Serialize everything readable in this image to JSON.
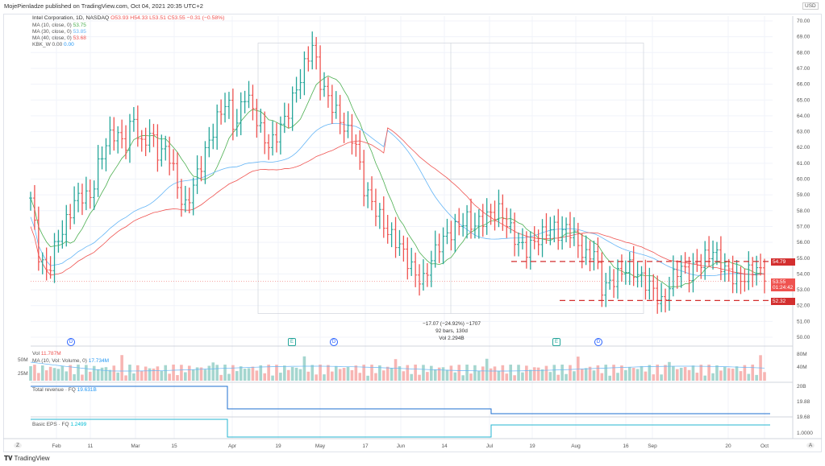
{
  "published": "MojePienladze published on TradingView.com, Oct 04, 2021 20:35 UTC+2",
  "symbol": {
    "title": "Intel Corporation, 1D, NASDAQ",
    "o": "O53.93",
    "h": "H54.33",
    "l": "L53.51",
    "c": "C53.55",
    "chg": "−0.31 (−0.58%)"
  },
  "indicators": [
    {
      "label": "MA (10, close, 0)",
      "value": "53.75",
      "color": "#4caf50"
    },
    {
      "label": "MA (30, close, 0)",
      "value": "53.85",
      "color": "#64b5f6"
    },
    {
      "label": "MA (40, close, 0)",
      "value": "53.68",
      "color": "#ef5350"
    },
    {
      "label": "KBK_W 0.00",
      "value": "0.00",
      "color": "#2196f3"
    }
  ],
  "volume": {
    "label": "Vol",
    "value": "11.787M",
    "ma_label": "MA (10, Vol: Volume, 0)",
    "ma_value": "17.734M",
    "ticks": [
      "50M",
      "25M"
    ],
    "axis": [
      "80M",
      "40M"
    ]
  },
  "revenue": {
    "label": "Total revenue · FQ",
    "value": "19.631B",
    "axis": [
      "20B",
      "19.88",
      "19.68"
    ],
    "values_b": [
      20.0,
      19.63,
      19.63
    ],
    "change_dates": [
      "Mar 31",
      "Jul 1"
    ]
  },
  "eps": {
    "label": "Basic EPS · FQ",
    "value": "1.2499",
    "axis": [
      "1.0000"
    ]
  },
  "measure": {
    "line1": "−17.07 (−24.92%) −1707",
    "line2": "92 bars, 130d",
    "line3": "Vol 2.294B"
  },
  "levels": {
    "resistance": "54.79",
    "support": "52.32",
    "last": "53.55",
    "countdown": "01:24:42",
    "currency": "USD"
  },
  "events": [
    {
      "t": "D",
      "x": "Feb 5"
    },
    {
      "t": "E",
      "x": "Apr 22"
    },
    {
      "t": "D",
      "x": "May 5"
    },
    {
      "t": "E",
      "x": "Jul 22"
    },
    {
      "t": "D",
      "x": "Aug 5"
    }
  ],
  "footer": {
    "logo": "TradingView",
    "auto": "A",
    "zoom": "Z"
  },
  "chart_data": {
    "type": "ohlc",
    "title": "Intel Corporation, 1D, NASDAQ",
    "ylim": [
      49.5,
      70.5
    ],
    "y_ticks": [
      "70.00",
      "69.00",
      "68.00",
      "67.00",
      "66.00",
      "65.00",
      "64.00",
      "63.00",
      "62.00",
      "61.00",
      "60.00",
      "59.00",
      "58.00",
      "57.00",
      "56.00",
      "55.00",
      "54.00",
      "53.00",
      "52.00",
      "51.00",
      "50.00"
    ],
    "x_ticks": [
      "Feb",
      "11",
      "Mar",
      "15",
      "Apr",
      "19",
      "May",
      "17",
      "Jun",
      "14",
      "Jul",
      "19",
      "Aug",
      "16",
      "Sep",
      "20",
      "Oct"
    ],
    "closes_sampled": [
      58.8,
      55,
      54,
      56,
      57,
      58.5,
      59,
      58.8,
      61,
      62.5,
      63,
      62,
      64,
      62,
      63,
      61.5,
      62,
      60,
      58,
      59.5,
      61,
      62.5,
      64,
      65,
      63,
      65.5,
      64.5,
      63,
      62,
      63,
      64,
      65.5,
      67,
      68.5,
      66,
      65,
      64,
      63,
      62.5,
      59.5,
      58.5,
      57.5,
      56.5,
      56,
      55,
      54,
      53.5,
      55,
      56,
      56.5,
      57,
      57.5,
      57,
      57.5,
      57.8,
      58,
      57,
      56,
      55.5,
      56,
      56.5,
      57,
      56.5,
      57,
      56,
      55,
      55.5,
      53,
      53.5,
      54,
      54.5,
      54,
      53.5,
      53,
      52,
      53.5,
      54.5,
      54,
      54.5,
      55,
      55.5,
      54.5,
      54,
      53.5,
      54,
      54.5,
      53.55
    ]
  }
}
